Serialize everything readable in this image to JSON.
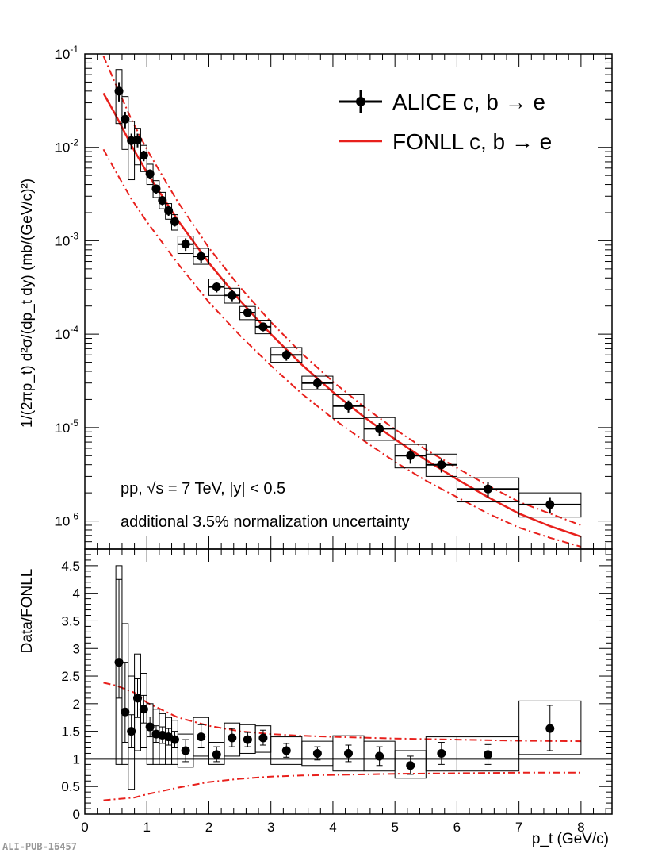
{
  "chart_data": [
    {
      "name": "spectrum",
      "type": "scatter",
      "yscale": "log",
      "ylabel": "1/(2πp_t) d²σ/(dp_t dy) (mb/(GeV/c)²)",
      "ylim": [
        5e-07,
        0.1
      ],
      "xlim": [
        0,
        8.5
      ],
      "ytick_labels": [
        {
          "base": "10",
          "exp": "-1",
          "value": 0.1
        },
        {
          "base": "10",
          "exp": "-2",
          "value": 0.01
        },
        {
          "base": "10",
          "exp": "-3",
          "value": 0.001
        },
        {
          "base": "10",
          "exp": "-4",
          "value": 0.0001
        },
        {
          "base": "10",
          "exp": "-5",
          "value": 1e-05
        },
        {
          "base": "10",
          "exp": "-6",
          "value": 1e-06
        }
      ],
      "legend": {
        "position": "top-right",
        "entries": [
          {
            "label": "ALICE c, b → e",
            "style": "marker"
          },
          {
            "label": "FONLL c, b → e",
            "style": "line"
          }
        ]
      },
      "annotations": [
        "pp, √s = 7 TeV, |y| < 0.5",
        "additional 3.5% normalization uncertainty"
      ],
      "series": [
        {
          "name": "ALICE c, b → e",
          "points": [
            {
              "x": 0.55,
              "xlo": 0.5,
              "xhi": 0.6,
              "y": 0.04,
              "ylo": 0.031,
              "yhi": 0.05,
              "slo": 0.018,
              "shi": 0.068
            },
            {
              "x": 0.65,
              "xlo": 0.6,
              "xhi": 0.7,
              "y": 0.02,
              "ylo": 0.016,
              "yhi": 0.024,
              "slo": 0.0095,
              "shi": 0.035
            },
            {
              "x": 0.75,
              "xlo": 0.7,
              "xhi": 0.8,
              "y": 0.0118,
              "ylo": 0.0095,
              "yhi": 0.014,
              "slo": 0.0045,
              "shi": 0.019
            },
            {
              "x": 0.85,
              "xlo": 0.8,
              "xhi": 0.9,
              "y": 0.012,
              "ylo": 0.01,
              "yhi": 0.014,
              "slo": 0.0065,
              "shi": 0.016
            },
            {
              "x": 0.95,
              "xlo": 0.9,
              "xhi": 1.0,
              "y": 0.0082,
              "ylo": 0.0071,
              "yhi": 0.0092,
              "slo": 0.0055,
              "shi": 0.0105
            },
            {
              "x": 1.05,
              "xlo": 1.0,
              "xhi": 1.1,
              "y": 0.0052,
              "ylo": 0.0046,
              "yhi": 0.0058,
              "slo": 0.004,
              "shi": 0.0066
            },
            {
              "x": 1.15,
              "xlo": 1.1,
              "xhi": 1.2,
              "y": 0.0036,
              "ylo": 0.0032,
              "yhi": 0.004,
              "slo": 0.0029,
              "shi": 0.0044
            },
            {
              "x": 1.25,
              "xlo": 1.2,
              "xhi": 1.3,
              "y": 0.0027,
              "ylo": 0.0024,
              "yhi": 0.003,
              "slo": 0.0022,
              "shi": 0.0033
            },
            {
              "x": 1.35,
              "xlo": 1.3,
              "xhi": 1.4,
              "y": 0.0021,
              "ylo": 0.00185,
              "yhi": 0.00235,
              "slo": 0.0017,
              "shi": 0.0025
            },
            {
              "x": 1.45,
              "xlo": 1.4,
              "xhi": 1.5,
              "y": 0.0016,
              "ylo": 0.00142,
              "yhi": 0.00178,
              "slo": 0.0013,
              "shi": 0.0019
            },
            {
              "x": 1.625,
              "xlo": 1.5,
              "xhi": 1.75,
              "y": 0.00092,
              "ylo": 0.00078,
              "yhi": 0.00106,
              "slo": 0.00073,
              "shi": 0.00112
            },
            {
              "x": 1.875,
              "xlo": 1.75,
              "xhi": 2.0,
              "y": 0.00068,
              "ylo": 0.00058,
              "yhi": 0.00078,
              "slo": 0.00056,
              "shi": 0.00083
            },
            {
              "x": 2.125,
              "xlo": 2.0,
              "xhi": 2.25,
              "y": 0.00032,
              "ylo": 0.00028,
              "yhi": 0.00036,
              "slo": 0.00026,
              "shi": 0.00039
            },
            {
              "x": 2.375,
              "xlo": 2.25,
              "xhi": 2.5,
              "y": 0.00026,
              "ylo": 0.000225,
              "yhi": 0.000295,
              "slo": 0.000215,
              "shi": 0.00031
            },
            {
              "x": 2.625,
              "xlo": 2.5,
              "xhi": 2.75,
              "y": 0.00017,
              "ylo": 0.000152,
              "yhi": 0.000188,
              "slo": 0.000143,
              "shi": 0.000198
            },
            {
              "x": 2.875,
              "xlo": 2.75,
              "xhi": 3.0,
              "y": 0.00012,
              "ylo": 0.000107,
              "yhi": 0.000133,
              "slo": 0.000101,
              "shi": 0.000141
            },
            {
              "x": 3.25,
              "xlo": 3.0,
              "xhi": 3.5,
              "y": 6e-05,
              "ylo": 5.2e-05,
              "yhi": 6.8e-05,
              "slo": 5e-05,
              "shi": 7.2e-05
            },
            {
              "x": 3.75,
              "xlo": 3.5,
              "xhi": 4.0,
              "y": 3e-05,
              "ylo": 2.6e-05,
              "yhi": 3.4e-05,
              "slo": 2.55e-05,
              "shi": 3.55e-05
            },
            {
              "x": 4.25,
              "xlo": 4.0,
              "xhi": 4.5,
              "y": 1.7e-05,
              "ylo": 1.45e-05,
              "yhi": 1.95e-05,
              "slo": 1.25e-05,
              "shi": 2.25e-05
            },
            {
              "x": 4.75,
              "xlo": 4.5,
              "xhi": 5.0,
              "y": 9.7e-06,
              "ylo": 8.2e-06,
              "yhi": 1.12e-05,
              "slo": 7.3e-06,
              "shi": 1.28e-05
            },
            {
              "x": 5.25,
              "xlo": 5.0,
              "xhi": 5.5,
              "y": 5e-06,
              "ylo": 4.1e-06,
              "yhi": 5.9e-06,
              "slo": 3.7e-06,
              "shi": 6.6e-06
            },
            {
              "x": 5.75,
              "xlo": 5.5,
              "xhi": 6.0,
              "y": 4e-06,
              "ylo": 3.3e-06,
              "yhi": 4.7e-06,
              "slo": 3e-06,
              "shi": 5.2e-06
            },
            {
              "x": 6.5,
              "xlo": 6.0,
              "xhi": 7.0,
              "y": 2.2e-06,
              "ylo": 1.8e-06,
              "yhi": 2.6e-06,
              "slo": 1.6e-06,
              "shi": 2.9e-06
            },
            {
              "x": 7.5,
              "xlo": 7.0,
              "xhi": 8.0,
              "y": 1.5e-06,
              "ylo": 1.2e-06,
              "yhi": 1.8e-06,
              "slo": 1.1e-06,
              "shi": 2e-06
            }
          ]
        },
        {
          "name": "FONLL c, b → e",
          "curve": [
            {
              "x": 0.3,
              "central": 0.038,
              "upper": 0.095,
              "lower": 0.0095
            },
            {
              "x": 0.5,
              "central": 0.022,
              "upper": 0.047,
              "lower": 0.0055
            },
            {
              "x": 0.75,
              "central": 0.0105,
              "upper": 0.02,
              "lower": 0.0028
            },
            {
              "x": 1.0,
              "central": 0.0054,
              "upper": 0.0095,
              "lower": 0.0016
            },
            {
              "x": 1.5,
              "central": 0.00165,
              "upper": 0.0026,
              "lower": 0.00057
            },
            {
              "x": 2.0,
              "central": 0.00058,
              "upper": 0.00084,
              "lower": 0.00022
            },
            {
              "x": 2.5,
              "central": 0.00023,
              "upper": 0.00032,
              "lower": 9.7e-05
            },
            {
              "x": 3.0,
              "central": 0.0001,
              "upper": 0.000135,
              "lower": 4.6e-05
            },
            {
              "x": 3.5,
              "central": 4.7e-05,
              "upper": 6.2e-05,
              "lower": 2.3e-05
            },
            {
              "x": 4.0,
              "central": 2.4e-05,
              "upper": 3.1e-05,
              "lower": 1.25e-05
            },
            {
              "x": 4.5,
              "central": 1.3e-05,
              "upper": 1.67e-05,
              "lower": 7.2e-06
            },
            {
              "x": 5.0,
              "central": 7.5e-06,
              "upper": 9.6e-06,
              "lower": 4.3e-06
            },
            {
              "x": 5.5,
              "central": 4.5e-06,
              "upper": 5.8e-06,
              "lower": 2.7e-06
            },
            {
              "x": 6.0,
              "central": 2.8e-06,
              "upper": 3.7e-06,
              "lower": 1.8e-06
            },
            {
              "x": 6.5,
              "central": 1.8e-06,
              "upper": 2.4e-06,
              "lower": 1.2e-06
            },
            {
              "x": 7.0,
              "central": 1.2e-06,
              "upper": 1.6e-06,
              "lower": 8.5e-07
            },
            {
              "x": 7.5,
              "central": 8.8e-07,
              "upper": 1.2e-06,
              "lower": 6.6e-07
            },
            {
              "x": 8.0,
              "central": 6.8e-07,
              "upper": 9e-07,
              "lower": 5.3e-07
            }
          ]
        }
      ]
    },
    {
      "name": "ratio",
      "type": "scatter",
      "ylabel": "Data/FONLL",
      "xlabel": "p_t (GeV/c)",
      "xlim": [
        0,
        8.5
      ],
      "ylim": [
        0,
        4.8
      ],
      "xticks": [
        "0",
        "1",
        "2",
        "3",
        "4",
        "5",
        "6",
        "7",
        "8"
      ],
      "yticks": [
        "0",
        "0.5",
        "1",
        "1.5",
        "2",
        "2.5",
        "3",
        "3.5",
        "4",
        "4.5"
      ],
      "reference_line": 1,
      "points": [
        {
          "x": 0.55,
          "xlo": 0.5,
          "xhi": 0.6,
          "y": 2.75,
          "ylo": 2.1,
          "yhi": 4.25,
          "slo": 0.9,
          "shi": 4.5
        },
        {
          "x": 0.65,
          "xlo": 0.6,
          "xhi": 0.7,
          "y": 1.85,
          "ylo": 1.3,
          "yhi": 2.75,
          "slo": 0.9,
          "shi": 3.45
        },
        {
          "x": 0.75,
          "xlo": 0.7,
          "xhi": 0.8,
          "y": 1.5,
          "ylo": 1.2,
          "yhi": 1.8,
          "slo": 0.45,
          "shi": 2.5
        },
        {
          "x": 0.85,
          "xlo": 0.8,
          "xhi": 0.9,
          "y": 2.1,
          "ylo": 1.75,
          "yhi": 2.45,
          "slo": 1.15,
          "shi": 2.9
        },
        {
          "x": 0.95,
          "xlo": 0.9,
          "xhi": 1.0,
          "y": 1.9,
          "ylo": 1.65,
          "yhi": 2.15,
          "slo": 1.2,
          "shi": 2.55
        },
        {
          "x": 1.05,
          "xlo": 1.0,
          "xhi": 1.1,
          "y": 1.58,
          "ylo": 1.4,
          "yhi": 1.76,
          "slo": 0.9,
          "shi": 2.0
        },
        {
          "x": 1.15,
          "xlo": 1.1,
          "xhi": 1.2,
          "y": 1.45,
          "ylo": 1.3,
          "yhi": 1.6,
          "slo": 0.9,
          "shi": 1.9
        },
        {
          "x": 1.25,
          "xlo": 1.2,
          "xhi": 1.3,
          "y": 1.43,
          "ylo": 1.28,
          "yhi": 1.58,
          "slo": 0.9,
          "shi": 1.82
        },
        {
          "x": 1.35,
          "xlo": 1.3,
          "xhi": 1.4,
          "y": 1.4,
          "ylo": 1.25,
          "yhi": 1.55,
          "slo": 0.9,
          "shi": 1.75
        },
        {
          "x": 1.45,
          "xlo": 1.4,
          "xhi": 1.5,
          "y": 1.35,
          "ylo": 1.2,
          "yhi": 1.5,
          "slo": 0.9,
          "shi": 1.7
        },
        {
          "x": 1.625,
          "xlo": 1.5,
          "xhi": 1.75,
          "y": 1.15,
          "ylo": 0.95,
          "yhi": 1.35,
          "slo": 0.85,
          "shi": 1.45
        },
        {
          "x": 1.875,
          "xlo": 1.75,
          "xhi": 2.0,
          "y": 1.4,
          "ylo": 1.2,
          "yhi": 1.62,
          "slo": 1.05,
          "shi": 1.75
        },
        {
          "x": 2.125,
          "xlo": 2.0,
          "xhi": 2.25,
          "y": 1.08,
          "ylo": 0.95,
          "yhi": 1.22,
          "slo": 0.9,
          "shi": 1.3
        },
        {
          "x": 2.375,
          "xlo": 2.25,
          "xhi": 2.5,
          "y": 1.38,
          "ylo": 1.22,
          "yhi": 1.55,
          "slo": 1.05,
          "shi": 1.65
        },
        {
          "x": 2.625,
          "xlo": 2.5,
          "xhi": 2.75,
          "y": 1.35,
          "ylo": 1.22,
          "yhi": 1.48,
          "slo": 1.1,
          "shi": 1.62
        },
        {
          "x": 2.875,
          "xlo": 2.75,
          "xhi": 3.0,
          "y": 1.38,
          "ylo": 1.25,
          "yhi": 1.52,
          "slo": 1.12,
          "shi": 1.6
        },
        {
          "x": 3.25,
          "xlo": 3.0,
          "xhi": 3.5,
          "y": 1.15,
          "ylo": 1.03,
          "yhi": 1.28,
          "slo": 0.9,
          "shi": 1.4
        },
        {
          "x": 3.75,
          "xlo": 3.5,
          "xhi": 4.0,
          "y": 1.1,
          "ylo": 0.98,
          "yhi": 1.22,
          "slo": 0.88,
          "shi": 1.32
        },
        {
          "x": 4.25,
          "xlo": 4.0,
          "xhi": 4.5,
          "y": 1.1,
          "ylo": 0.95,
          "yhi": 1.25,
          "slo": 0.78,
          "shi": 1.42
        },
        {
          "x": 4.75,
          "xlo": 4.5,
          "xhi": 5.0,
          "y": 1.05,
          "ylo": 0.88,
          "yhi": 1.22,
          "slo": 0.78,
          "shi": 1.32
        },
        {
          "x": 5.25,
          "xlo": 5.0,
          "xhi": 5.5,
          "y": 0.88,
          "ylo": 0.72,
          "yhi": 1.05,
          "slo": 0.65,
          "shi": 1.15
        },
        {
          "x": 5.75,
          "xlo": 5.5,
          "xhi": 6.0,
          "y": 1.1,
          "ylo": 0.9,
          "yhi": 1.3,
          "slo": 0.78,
          "shi": 1.4
        },
        {
          "x": 6.5,
          "xlo": 6.0,
          "xhi": 7.0,
          "y": 1.08,
          "ylo": 0.9,
          "yhi": 1.26,
          "slo": 0.78,
          "shi": 1.4
        },
        {
          "x": 7.5,
          "xlo": 7.0,
          "xhi": 8.0,
          "y": 1.55,
          "ylo": 1.15,
          "yhi": 1.97,
          "slo": 1.08,
          "shi": 2.05
        }
      ],
      "band": [
        {
          "x": 0.3,
          "upper": 2.38,
          "lower": 0.25
        },
        {
          "x": 0.5,
          "upper": 2.33,
          "lower": 0.27
        },
        {
          "x": 0.8,
          "upper": 2.2,
          "lower": 0.3
        },
        {
          "x": 1.0,
          "upper": 2.02,
          "lower": 0.36
        },
        {
          "x": 1.5,
          "upper": 1.75,
          "lower": 0.48
        },
        {
          "x": 2.0,
          "upper": 1.6,
          "lower": 0.58
        },
        {
          "x": 2.5,
          "upper": 1.5,
          "lower": 0.64
        },
        {
          "x": 3.0,
          "upper": 1.45,
          "lower": 0.68
        },
        {
          "x": 3.5,
          "upper": 1.42,
          "lower": 0.7
        },
        {
          "x": 4.0,
          "upper": 1.4,
          "lower": 0.71
        },
        {
          "x": 5.0,
          "upper": 1.37,
          "lower": 0.73
        },
        {
          "x": 6.0,
          "upper": 1.35,
          "lower": 0.74
        },
        {
          "x": 7.0,
          "upper": 1.33,
          "lower": 0.75
        },
        {
          "x": 8.0,
          "upper": 1.32,
          "lower": 0.75
        }
      ]
    }
  ],
  "watermark": "ALI-PUB-16457",
  "colors": {
    "data": "#000000",
    "fonll": "#e8201c",
    "frame": "#000000"
  }
}
